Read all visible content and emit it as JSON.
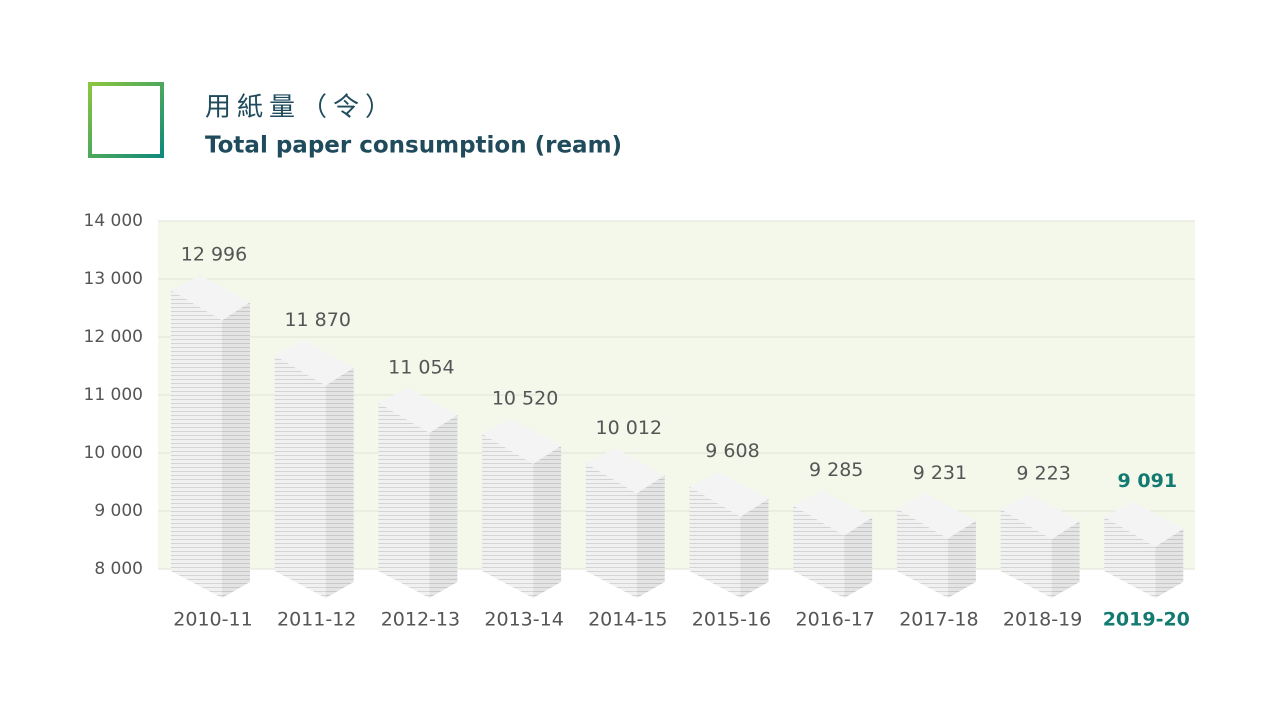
{
  "chart_data": {
    "type": "bar",
    "title": "用紙量（令）",
    "subtitle": "Total paper consumption (ream)",
    "categories": [
      "2010-11",
      "2011-12",
      "2012-13",
      "2013-14",
      "2014-15",
      "2015-16",
      "2016-17",
      "2017-18",
      "2018-19",
      "2019-20"
    ],
    "values": [
      12996,
      11870,
      11054,
      10520,
      10012,
      9608,
      9285,
      9231,
      9223,
      9091
    ],
    "value_labels": [
      "12 996",
      "11 870",
      "11 054",
      "10 520",
      "10 012",
      "9 608",
      "9 285",
      "9 231",
      "9 223",
      "9 091"
    ],
    "color": "#f4f4f4",
    "ylim": [
      8000,
      14000
    ],
    "yticks": [
      {
        "value": 8000,
        "label": "8 000"
      },
      {
        "value": 9000,
        "label": "9 000"
      },
      {
        "value": 10000,
        "label": "10 000"
      },
      {
        "value": 11000,
        "label": "11 000"
      },
      {
        "value": 12000,
        "label": "12 000"
      },
      {
        "value": 13000,
        "label": "13 000"
      },
      {
        "value": 14000,
        "label": "14 000"
      }
    ],
    "grid": true
  }
}
